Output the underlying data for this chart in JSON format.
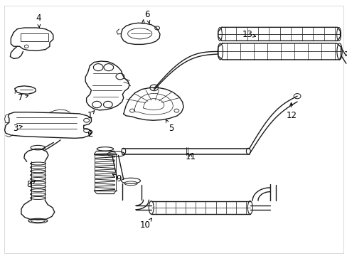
{
  "background_color": "#ffffff",
  "line_color": "#1a1a1a",
  "line_width": 1.0,
  "label_fontsize": 8.5,
  "fig_width": 4.89,
  "fig_height": 3.6,
  "dpi": 100,
  "border_color": "#cccccc",
  "label_positions": {
    "4": [
      0.11,
      0.93,
      0.112,
      0.892
    ],
    "6": [
      0.422,
      0.945,
      0.43,
      0.908
    ],
    "13": [
      0.712,
      0.868,
      0.738,
      0.858
    ],
    "12": [
      0.84,
      0.548,
      0.838,
      0.61
    ],
    "7": [
      0.058,
      0.618,
      0.082,
      0.628
    ],
    "1": [
      0.258,
      0.548,
      0.272,
      0.57
    ],
    "5": [
      0.492,
      0.498,
      0.476,
      0.535
    ],
    "3": [
      0.043,
      0.5,
      0.065,
      0.508
    ],
    "2": [
      0.258,
      0.475,
      0.248,
      0.49
    ],
    "11": [
      0.548,
      0.388,
      0.548,
      0.402
    ],
    "9": [
      0.342,
      0.302,
      0.322,
      0.32
    ],
    "8": [
      0.082,
      0.278,
      0.102,
      0.295
    ],
    "10": [
      0.418,
      0.118,
      0.438,
      0.148
    ]
  }
}
